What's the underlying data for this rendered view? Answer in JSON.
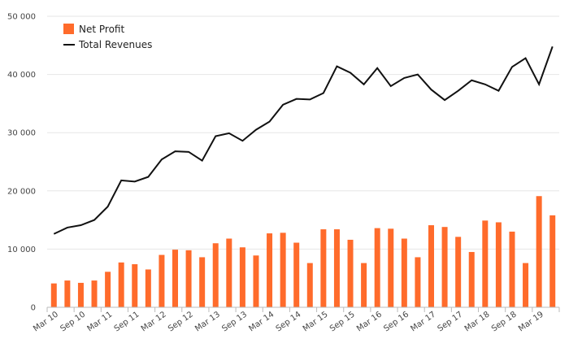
{
  "chart_data": {
    "type": "bar",
    "categories": [
      "Mar 10",
      "Jun 10",
      "Sep 10",
      "Dec 10",
      "Mar 11",
      "Jun 11",
      "Sep 11",
      "Dec 11",
      "Mar 12",
      "Jun 12",
      "Sep 12",
      "Dec 12",
      "Mar 13",
      "Jun 13",
      "Sep 13",
      "Dec 13",
      "Mar 14",
      "Jun 14",
      "Sep 14",
      "Dec 14",
      "Mar 15",
      "Jun 15",
      "Sep 15",
      "Dec 15",
      "Mar 16",
      "Jun 16",
      "Sep 16",
      "Dec 16",
      "Mar 17",
      "Jun 17",
      "Sep 17",
      "Dec 17",
      "Mar 18",
      "Jun 18",
      "Sep 18",
      "Dec 18",
      "Mar 19",
      "Jun 19"
    ],
    "x_tick_labels": [
      "Mar 10",
      "Sep 10",
      "Mar 11",
      "Sep 11",
      "Mar 12",
      "Sep 12",
      "Mar 13",
      "Sep 13",
      "Mar 14",
      "Sep 14",
      "Mar 15",
      "Sep 15",
      "Mar 16",
      "Sep 16",
      "Mar 17",
      "Sep 17",
      "Mar 18",
      "Sep 18",
      "Mar 19"
    ],
    "y_tick_labels": [
      "0",
      "10 000",
      "20 000",
      "30 000",
      "40 000",
      "50 000"
    ],
    "ylim": [
      0,
      50000
    ],
    "grid": "horizontal",
    "legend_position": "top-left",
    "series": [
      {
        "name": "Net Profit",
        "kind": "bar",
        "color": "#ff6b2b",
        "values": [
          4100,
          4600,
          4200,
          4600,
          6100,
          7700,
          7400,
          6500,
          9000,
          9900,
          9800,
          8600,
          11000,
          11800,
          10300,
          8900,
          12700,
          12800,
          11100,
          7600,
          13400,
          13400,
          11600,
          7600,
          13600,
          13500,
          11800,
          8600,
          14100,
          13800,
          12100,
          9500,
          14900,
          14600,
          13000,
          7600,
          19100,
          15800
        ]
      },
      {
        "name": "Total Revenues",
        "kind": "line",
        "color": "#111111",
        "values": [
          12600,
          13700,
          14100,
          15000,
          17300,
          21800,
          21600,
          22400,
          25400,
          26800,
          26700,
          25200,
          29400,
          29900,
          28600,
          30500,
          31900,
          34800,
          35800,
          35700,
          36800,
          41400,
          40300,
          38300,
          41100,
          38000,
          39400,
          40000,
          37400,
          35600,
          37200,
          39000,
          38300,
          37200,
          41300,
          42800,
          38300,
          44800
        ]
      }
    ]
  }
}
